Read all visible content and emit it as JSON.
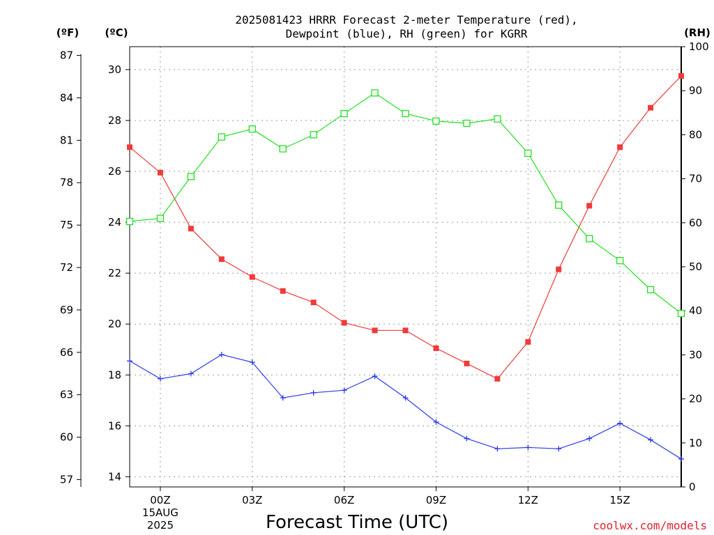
{
  "title_line1": "2025081423 HRRR Forecast 2-meter Temperature (red),",
  "title_line2": "Dewpoint (blue), RH (green) for KGRR",
  "unit_f": "(ºF)",
  "unit_c": "(ºC)",
  "unit_rh": "(RH)",
  "xlabel": "Forecast Time (UTC)",
  "credit": "coolwx.com/models",
  "colors": {
    "temperature": "#f03a3a",
    "dewpoint": "#2a3ce8",
    "rh": "#1fe01f",
    "credit": "#e0202a"
  },
  "chart_data": {
    "type": "line",
    "title": "2025081423 HRRR Forecast 2-meter Temperature (red), Dewpoint (blue), RH (green) for KGRR",
    "xlabel": "Forecast Time (UTC)",
    "x_hours": [
      -1,
      0,
      1,
      2,
      3,
      4,
      5,
      6,
      7,
      8,
      9,
      10,
      11,
      12,
      13,
      14,
      15,
      16,
      17
    ],
    "xlim": [
      -1,
      17
    ],
    "x_ticks": [
      {
        "hour": 0,
        "label": "00Z",
        "sub1": "15AUG",
        "sub2": "2025"
      },
      {
        "hour": 3,
        "label": "03Z"
      },
      {
        "hour": 6,
        "label": "06Z"
      },
      {
        "hour": 9,
        "label": "09Z"
      },
      {
        "hour": 12,
        "label": "12Z"
      },
      {
        "hour": 15,
        "label": "15Z"
      }
    ],
    "left_axis_c": {
      "ylim": [
        13.6,
        30.9
      ],
      "ticks": [
        14,
        16,
        18,
        20,
        22,
        24,
        26,
        28,
        30
      ]
    },
    "left_axis_f": {
      "ticks": [
        57,
        60,
        63,
        66,
        69,
        72,
        75,
        78,
        81,
        84,
        87
      ]
    },
    "right_axis_rh": {
      "ylim": [
        0,
        100
      ],
      "ticks": [
        0,
        10,
        20,
        30,
        40,
        50,
        60,
        70,
        80,
        90,
        100
      ]
    },
    "grid": true,
    "series": [
      {
        "key": "temperature",
        "axis": "c",
        "marker": "filled-square",
        "values": [
          26.95,
          25.95,
          23.75,
          22.55,
          21.85,
          21.3,
          20.85,
          20.05,
          19.75,
          19.75,
          19.05,
          18.45,
          17.85,
          19.3,
          22.15,
          24.65,
          26.95,
          28.5,
          29.75
        ]
      },
      {
        "key": "dewpoint",
        "axis": "c",
        "marker": "plus",
        "values": [
          18.55,
          17.85,
          18.05,
          18.8,
          18.5,
          17.1,
          17.3,
          17.4,
          17.95,
          17.1,
          16.15,
          15.5,
          15.1,
          15.15,
          15.1,
          15.5,
          16.1,
          15.45,
          14.7
        ]
      },
      {
        "key": "rh",
        "axis": "rh",
        "marker": "open-square",
        "values": [
          60.3,
          61.0,
          70.5,
          79.5,
          81.3,
          76.8,
          80.0,
          84.8,
          89.5,
          84.8,
          83.1,
          82.6,
          83.6,
          75.8,
          64.0,
          56.4,
          51.4,
          44.8,
          39.4
        ]
      }
    ]
  }
}
